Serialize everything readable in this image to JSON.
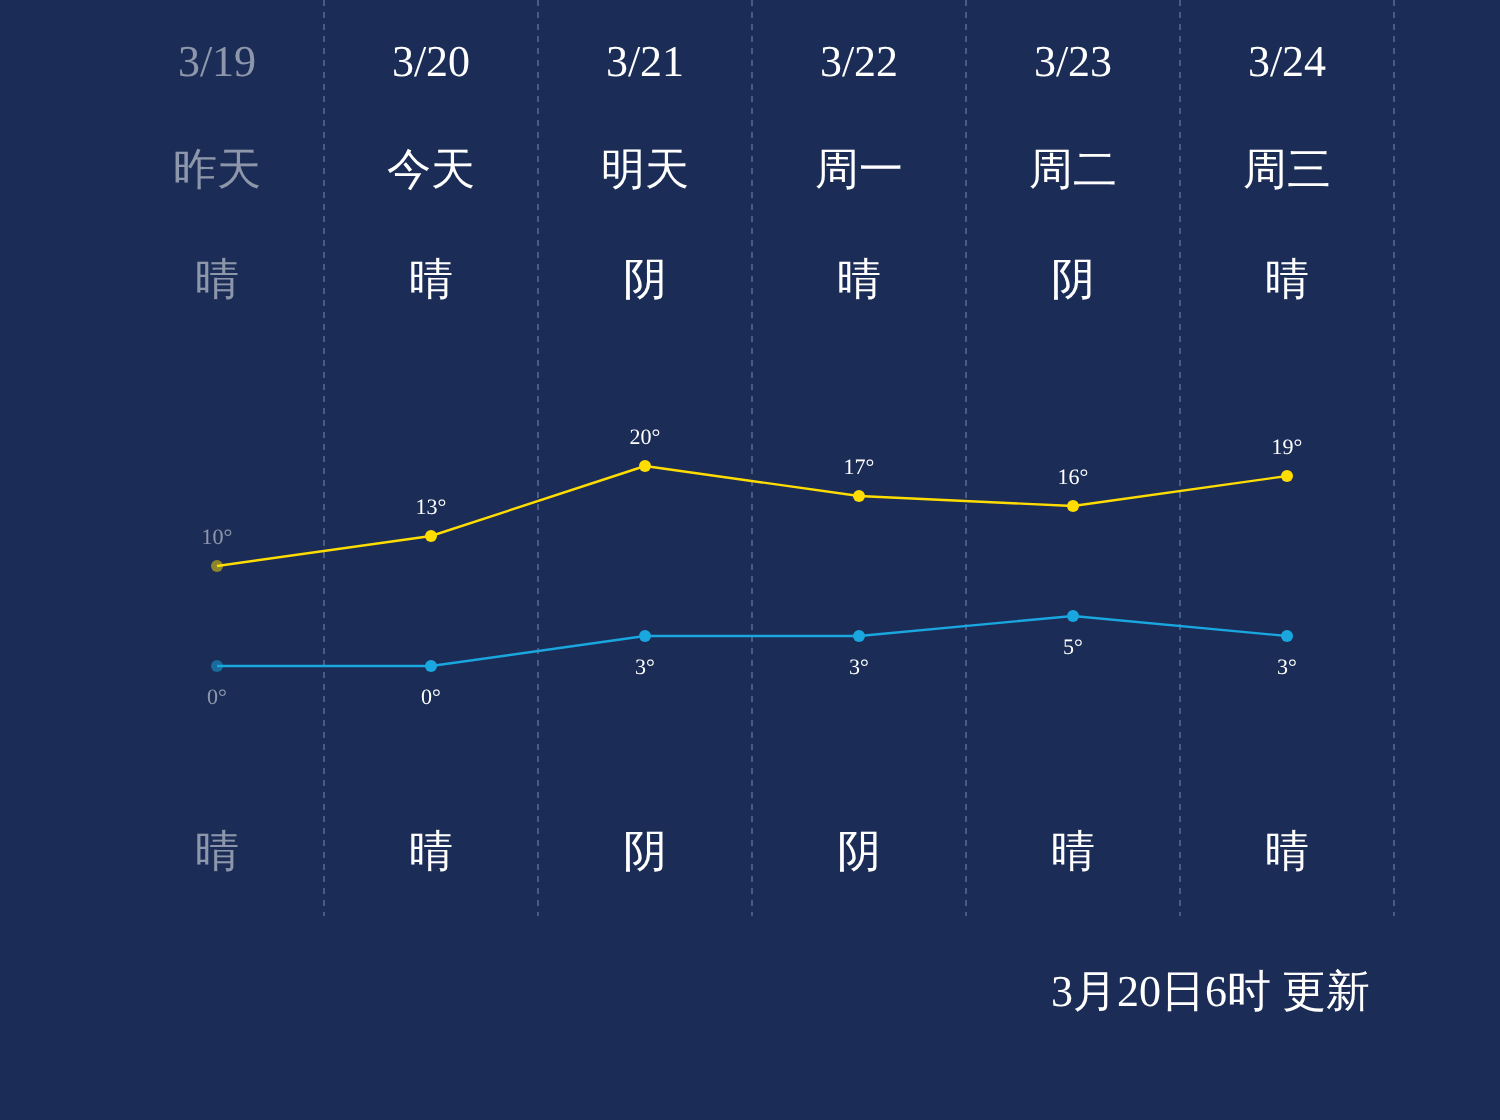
{
  "chart_data": {
    "type": "line",
    "categories": [
      "3/19",
      "3/20",
      "3/21",
      "3/22",
      "3/23",
      "3/24"
    ],
    "series": [
      {
        "color": "#ffdd00",
        "values": [
          10,
          13,
          20,
          17,
          16,
          19
        ],
        "value_labels": [
          "10°",
          "13°",
          "20°",
          "17°",
          "16°",
          "19°"
        ]
      },
      {
        "color": "#1aa7e0",
        "values": [
          0,
          0,
          3,
          3,
          5,
          3
        ],
        "value_labels": [
          "0°",
          "0°",
          "3°",
          "3°",
          "5°",
          "3°"
        ]
      }
    ],
    "marker": "circle",
    "grid": "x",
    "annotations": [
      "昨天",
      "今天",
      "明天",
      "周一",
      "周二",
      "周三",
      "晴",
      "晴",
      "阴",
      "晴",
      "阴",
      "晴",
      "晴",
      "晴",
      "阴",
      "阴",
      "晴",
      "晴",
      "3月20日6时 更新"
    ]
  }
}
